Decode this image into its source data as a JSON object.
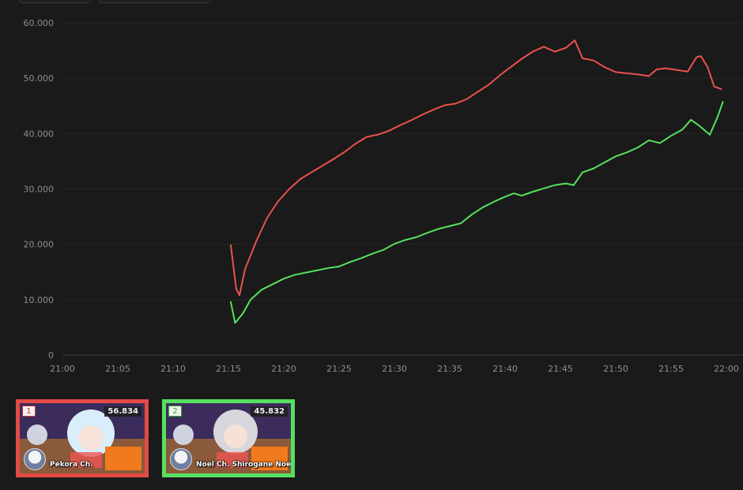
{
  "chart_data": {
    "type": "line",
    "x_ticks": [
      "21:00",
      "21:05",
      "21:10",
      "21:15",
      "21:20",
      "21:25",
      "21:30",
      "21:35",
      "21:40",
      "21:45",
      "21:50",
      "21:55",
      "22:00"
    ],
    "y_ticks": [
      "0",
      "10.000",
      "20.000",
      "30.000",
      "40.000",
      "50.000",
      "60.000"
    ],
    "ylim": [
      0,
      60000
    ],
    "xlim_minutes": [
      0,
      60
    ],
    "grid": "horizontal",
    "series": [
      {
        "color": "#e9524b",
        "points": [
          [
            15.2,
            20000
          ],
          [
            15.7,
            12000
          ],
          [
            16.0,
            10800
          ],
          [
            16.5,
            15500
          ],
          [
            17.5,
            20500
          ],
          [
            18.5,
            24800
          ],
          [
            19.5,
            27800
          ],
          [
            20.5,
            30000
          ],
          [
            21.5,
            31800
          ],
          [
            22.5,
            33000
          ],
          [
            23.5,
            34200
          ],
          [
            24.5,
            35400
          ],
          [
            25.5,
            36700
          ],
          [
            26.5,
            38200
          ],
          [
            27.5,
            39400
          ],
          [
            28.5,
            39800
          ],
          [
            29.5,
            40500
          ],
          [
            30.5,
            41500
          ],
          [
            31.5,
            42400
          ],
          [
            32.5,
            43400
          ],
          [
            33.5,
            44300
          ],
          [
            34.5,
            45100
          ],
          [
            35.5,
            45400
          ],
          [
            36.5,
            46200
          ],
          [
            37.5,
            47500
          ],
          [
            38.5,
            48800
          ],
          [
            39.5,
            50500
          ],
          [
            40.5,
            52000
          ],
          [
            41.5,
            53500
          ],
          [
            42.5,
            54800
          ],
          [
            43.5,
            55700
          ],
          [
            44.5,
            54800
          ],
          [
            45.5,
            55500
          ],
          [
            46.3,
            56834
          ],
          [
            47.0,
            53600
          ],
          [
            48.0,
            53200
          ],
          [
            49.0,
            52000
          ],
          [
            50.0,
            51100
          ],
          [
            51.0,
            50900
          ],
          [
            52.0,
            50700
          ],
          [
            53.0,
            50400
          ],
          [
            53.7,
            51600
          ],
          [
            54.5,
            51800
          ],
          [
            55.5,
            51500
          ],
          [
            56.5,
            51200
          ],
          [
            57.3,
            53800
          ],
          [
            57.7,
            54000
          ],
          [
            58.3,
            52000
          ],
          [
            58.9,
            48500
          ],
          [
            59.6,
            48000
          ]
        ]
      },
      {
        "color": "#56e05f",
        "points": [
          [
            15.2,
            9700
          ],
          [
            15.6,
            5800
          ],
          [
            16.3,
            7500
          ],
          [
            17.0,
            10000
          ],
          [
            18.0,
            11800
          ],
          [
            19.0,
            12800
          ],
          [
            20.0,
            13800
          ],
          [
            21.0,
            14500
          ],
          [
            22.0,
            14900
          ],
          [
            23.0,
            15300
          ],
          [
            24.0,
            15700
          ],
          [
            25.0,
            16000
          ],
          [
            26.0,
            16800
          ],
          [
            27.0,
            17500
          ],
          [
            28.0,
            18300
          ],
          [
            29.0,
            19000
          ],
          [
            30.0,
            20100
          ],
          [
            31.0,
            20800
          ],
          [
            32.0,
            21300
          ],
          [
            33.0,
            22100
          ],
          [
            34.0,
            22800
          ],
          [
            35.0,
            23300
          ],
          [
            36.0,
            23800
          ],
          [
            37.0,
            25400
          ],
          [
            38.0,
            26700
          ],
          [
            39.0,
            27700
          ],
          [
            40.0,
            28600
          ],
          [
            40.8,
            29200
          ],
          [
            41.5,
            28800
          ],
          [
            42.5,
            29500
          ],
          [
            43.5,
            30100
          ],
          [
            44.5,
            30700
          ],
          [
            45.5,
            31000
          ],
          [
            46.2,
            30700
          ],
          [
            47.0,
            33000
          ],
          [
            48.0,
            33700
          ],
          [
            49.0,
            34800
          ],
          [
            50.0,
            35900
          ],
          [
            51.0,
            36600
          ],
          [
            52.0,
            37500
          ],
          [
            53.0,
            38800
          ],
          [
            54.0,
            38300
          ],
          [
            55.0,
            39600
          ],
          [
            56.0,
            40700
          ],
          [
            56.8,
            42500
          ],
          [
            57.5,
            41500
          ],
          [
            58.5,
            39800
          ],
          [
            59.2,
            43000
          ],
          [
            59.7,
            45832
          ]
        ]
      }
    ]
  },
  "cards": [
    {
      "rank": "1",
      "count": "56.834",
      "channel": "Pekora Ch.",
      "border": "#e24b45",
      "art": "#9bd0e8"
    },
    {
      "rank": "2",
      "count": "45.832",
      "channel": "Noel Ch. Shirogane Noel",
      "border": "#56e05f",
      "art": "#c6c6cc"
    }
  ]
}
